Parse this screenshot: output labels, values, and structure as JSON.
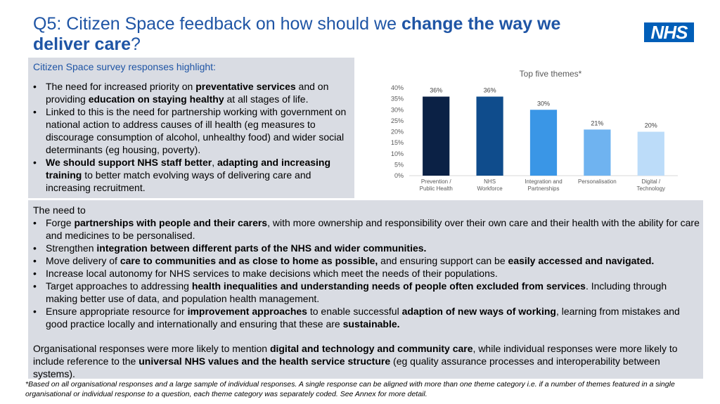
{
  "header": {
    "title_part1": "Q5: Citizen Space feedback on how should we ",
    "title_bold": "change the way we deliver care",
    "title_end": "?",
    "logo_text": "NHS"
  },
  "survey_box": {
    "heading": "Citizen Space survey responses highlight:",
    "bullets": [
      [
        {
          "t": "The need for increased priority on "
        },
        {
          "t": "preventative services",
          "b": true
        },
        {
          "t": " and on providing "
        },
        {
          "t": "education on staying healthy",
          "b": true
        },
        {
          "t": " at all stages of life."
        }
      ],
      [
        {
          "t": "Linked to this is the need for partnership working with government on national action to address causes of ill health (eg measures to discourage consumption of alcohol, unhealthy food) and wider social determinants (eg housing, poverty)."
        }
      ],
      [
        {
          "t": "We should support NHS staff better",
          "b": true
        },
        {
          "t": ", "
        },
        {
          "t": "adapting and increasing training",
          "b": true
        },
        {
          "t": " to better match evolving ways of delivering care and increasing recruitment."
        }
      ]
    ]
  },
  "need_box": {
    "lead": "The need to",
    "bullets": [
      [
        {
          "t": "Forge "
        },
        {
          "t": "partnerships with people and their carers",
          "b": true
        },
        {
          "t": ", with more ownership and responsibility over their own care and their health with the ability for care and medicines to be personalised."
        }
      ],
      [
        {
          "t": "Strengthen "
        },
        {
          "t": "integration between different parts of the NHS and wider communities.",
          "b": true
        }
      ],
      [
        {
          "t": "Move delivery of "
        },
        {
          "t": "care to communities and as close to home as possible,",
          "b": true
        },
        {
          "t": " and ensuring support can be "
        },
        {
          "t": "easily accessed and navigated.",
          "b": true
        }
      ],
      [
        {
          "t": "Increase local autonomy for NHS services to make decisions which meet the needs of their populations."
        }
      ],
      [
        {
          "t": "Target approaches to addressing "
        },
        {
          "t": "health inequalities and understanding needs of people often excluded from services",
          "b": true
        },
        {
          "t": ". Including through making better use of data, and population health management."
        }
      ],
      [
        {
          "t": "Ensure appropriate resource for "
        },
        {
          "t": "improvement approaches",
          "b": true
        },
        {
          "t": " to enable successful "
        },
        {
          "t": "adaption of new ways of working",
          "b": true
        },
        {
          "t": ", learning from mistakes and good practice locally and internationally and ensuring that these are "
        },
        {
          "t": "sustainable.",
          "b": true
        }
      ]
    ],
    "org_para": [
      {
        "t": "Organisational responses were more likely to mention "
      },
      {
        "t": "digital and technology and community care",
        "b": true
      },
      {
        "t": ", while individual responses were more likely to include reference to the "
      },
      {
        "t": "universal NHS values and the health service structure",
        "b": true
      },
      {
        "t": " (eg quality assurance processes and interoperability between systems)."
      }
    ]
  },
  "footnote": "*Based on all organisational responses and a large sample of individual responses. A single response can be aligned with more than one theme category i.e. if a number of themes featured in a single organisational or individual response to a question, each theme category was separately coded. See Annex for more detail.",
  "chart_data": {
    "type": "bar",
    "title": "Top five themes*",
    "categories": [
      [
        "Prevention /",
        "Public Health"
      ],
      [
        "NHS",
        "Workforce"
      ],
      [
        "Integration and",
        "Partnerships"
      ],
      [
        "Personalisation"
      ],
      [
        "Digital /",
        "Technology"
      ]
    ],
    "values": [
      36,
      36,
      30,
      21,
      20
    ],
    "data_labels": [
      "36%",
      "36%",
      "30%",
      "21%",
      "20%"
    ],
    "colors": [
      "#0b2145",
      "#0f4c8c",
      "#3a96e6",
      "#6fb3f0",
      "#bcdcf9"
    ],
    "ylim": [
      0,
      40
    ],
    "yticks": [
      "0%",
      "5%",
      "10%",
      "15%",
      "20%",
      "25%",
      "30%",
      "35%",
      "40%"
    ],
    "grid": false,
    "legend": "none"
  }
}
